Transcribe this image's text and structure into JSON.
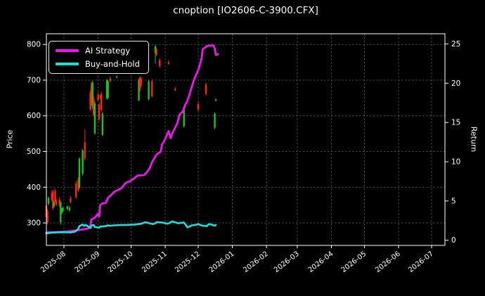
{
  "window": {
    "title": "cnoption [IO2606-C-3900.CFX]"
  },
  "colors": {
    "background": "#000000",
    "text": "#ffffff",
    "spine": "#ffffff",
    "grid": "#5c5c5c",
    "ai_strategy": "#ee15ee",
    "buy_and_hold": "#1cdede",
    "candle_up": "#1dc31d",
    "candle_down": "#fb2618"
  },
  "legend": {
    "items": [
      {
        "label": "AI Strategy",
        "color_key": "ai_strategy"
      },
      {
        "label": "Buy-and-Hold",
        "color_key": "buy_and_hold"
      }
    ]
  },
  "axes": {
    "left": {
      "label": "Price",
      "ticks": [
        300,
        400,
        500,
        600,
        700,
        800
      ],
      "range": [
        237,
        830
      ]
    },
    "right": {
      "label": "Return",
      "ticks": [
        0,
        5,
        10,
        15,
        20,
        25
      ],
      "range": [
        -0.65,
        26.3
      ]
    },
    "x": {
      "ticks": [
        "2025-08",
        "2025-09",
        "2025-10",
        "2025-11",
        "2025-12",
        "2026-01",
        "2026-02",
        "2026-03",
        "2026-04",
        "2026-05",
        "2026-06",
        "2026-07"
      ],
      "range": [
        "2025-07-16",
        "2026-07-13"
      ],
      "tick_rotation_deg": -38
    }
  },
  "chart_data": {
    "type": "candlestick_with_lines",
    "title": "cnoption [IO2606-C-3900.CFX]",
    "xlabel": "",
    "ylabel_left": "Price",
    "ylabel_right": "Return",
    "grid": true,
    "legend_position": "upper left",
    "candles_format": [
      "date",
      "open",
      "high",
      "low",
      "close"
    ],
    "candles": [
      [
        "2025-07-16",
        348,
        355,
        312,
        316
      ],
      [
        "2025-07-17",
        332,
        338,
        296,
        301
      ],
      [
        "2025-07-18",
        354,
        374,
        349,
        370
      ],
      [
        "2025-07-21",
        384,
        391,
        360,
        364
      ],
      [
        "2025-07-22",
        386,
        393,
        336,
        341
      ],
      [
        "2025-07-23",
        347,
        362,
        343,
        358
      ],
      [
        "2025-07-24",
        389,
        396,
        357,
        361
      ],
      [
        "2025-07-25",
        362,
        368,
        347,
        351
      ],
      [
        "2025-07-28",
        366,
        372,
        345,
        349
      ],
      [
        "2025-07-29",
        302,
        361,
        295,
        357
      ],
      [
        "2025-07-30",
        330,
        342,
        325,
        338
      ],
      [
        "2025-07-31",
        334,
        345,
        329,
        342
      ],
      [
        "2025-08-04",
        339,
        349,
        335,
        346
      ],
      [
        "2025-08-06",
        335,
        347,
        331,
        343
      ],
      [
        "2025-08-07",
        369,
        375,
        354,
        358
      ],
      [
        "2025-08-12",
        411,
        417,
        367,
        372
      ],
      [
        "2025-08-14",
        421,
        428,
        387,
        392
      ],
      [
        "2025-08-15",
        399,
        484,
        395,
        480
      ],
      [
        "2025-08-18",
        438,
        507,
        433,
        503
      ],
      [
        "2025-08-20",
        526,
        562,
        475,
        481
      ],
      [
        "2025-08-25",
        665,
        671,
        614,
        618
      ],
      [
        "2025-08-26",
        689,
        696,
        629,
        634
      ],
      [
        "2025-08-27",
        624,
        698,
        619,
        693
      ],
      [
        "2025-08-28",
        647,
        653,
        599,
        604
      ],
      [
        "2025-08-29",
        551,
        640,
        547,
        635
      ],
      [
        "2025-09-01",
        659,
        665,
        641,
        645
      ],
      [
        "2025-09-02",
        631,
        637,
        585,
        590
      ],
      [
        "2025-09-03",
        655,
        659,
        647,
        651
      ],
      [
        "2025-09-04",
        661,
        668,
        611,
        616
      ],
      [
        "2025-09-05",
        547,
        611,
        543,
        606
      ],
      [
        "2025-09-09",
        649,
        703,
        645,
        699
      ],
      [
        "2025-09-10",
        651,
        700,
        647,
        696
      ],
      [
        "2025-09-12",
        705,
        710,
        694,
        697
      ],
      [
        "2025-09-18",
        708,
        713,
        705,
        709
      ],
      [
        "2025-10-08",
        644,
        704,
        641,
        700
      ],
      [
        "2025-10-09",
        707,
        711,
        667,
        671
      ],
      [
        "2025-10-10",
        704,
        709,
        681,
        685
      ],
      [
        "2025-10-17",
        647,
        700,
        644,
        696
      ],
      [
        "2025-10-20",
        697,
        702,
        651,
        655
      ],
      [
        "2025-10-23",
        776,
        798,
        746,
        795
      ],
      [
        "2025-10-24",
        786,
        791,
        767,
        771
      ],
      [
        "2025-10-27",
        756,
        761,
        735,
        739
      ],
      [
        "2025-11-04",
        750,
        755,
        743,
        746
      ],
      [
        "2025-11-10",
        676,
        681,
        669,
        672
      ],
      [
        "2025-11-18",
        571,
        626,
        567,
        622
      ],
      [
        "2025-12-01",
        633,
        639,
        613,
        617
      ],
      [
        "2025-12-08",
        688,
        693,
        657,
        661
      ],
      [
        "2025-12-16",
        567,
        610,
        563,
        606
      ],
      [
        "2025-12-17",
        643,
        649,
        640,
        646
      ]
    ],
    "series": [
      {
        "name": "AI Strategy",
        "axis": "return",
        "color_key": "ai_strategy",
        "line_width": 2.8,
        "points": [
          [
            "2025-07-16",
            1.0
          ],
          [
            "2025-07-22",
            1.02
          ],
          [
            "2025-07-28",
            1.06
          ],
          [
            "2025-08-04",
            1.12
          ],
          [
            "2025-08-10",
            1.2
          ],
          [
            "2025-08-14",
            1.28
          ],
          [
            "2025-08-19",
            1.4
          ],
          [
            "2025-08-23",
            1.5
          ],
          [
            "2025-08-25",
            1.85
          ],
          [
            "2025-08-26",
            2.65
          ],
          [
            "2025-08-28",
            2.8
          ],
          [
            "2025-08-29",
            2.85
          ],
          [
            "2025-09-01",
            3.4
          ],
          [
            "2025-09-02",
            3.05
          ],
          [
            "2025-09-03",
            4.5
          ],
          [
            "2025-09-05",
            4.7
          ],
          [
            "2025-09-08",
            4.75
          ],
          [
            "2025-09-10",
            5.4
          ],
          [
            "2025-09-12",
            5.65
          ],
          [
            "2025-09-16",
            6.2
          ],
          [
            "2025-09-22",
            6.6
          ],
          [
            "2025-09-26",
            7.3
          ],
          [
            "2025-10-01",
            7.6
          ],
          [
            "2025-10-04",
            7.9
          ],
          [
            "2025-10-07",
            8.25
          ],
          [
            "2025-10-13",
            8.3
          ],
          [
            "2025-10-16",
            8.8
          ],
          [
            "2025-10-18",
            9.2
          ],
          [
            "2025-10-20",
            9.95
          ],
          [
            "2025-10-22",
            10.4
          ],
          [
            "2025-10-24",
            10.9
          ],
          [
            "2025-10-28",
            11.3
          ],
          [
            "2025-10-29",
            12.2
          ],
          [
            "2025-10-31",
            12.6
          ],
          [
            "2025-11-04",
            13.9
          ],
          [
            "2025-11-06",
            13.0
          ],
          [
            "2025-11-07",
            13.5
          ],
          [
            "2025-11-12",
            14.9
          ],
          [
            "2025-11-14",
            16.0
          ],
          [
            "2025-11-17",
            16.4
          ],
          [
            "2025-11-19",
            17.2
          ],
          [
            "2025-11-21",
            17.7
          ],
          [
            "2025-11-24",
            19.0
          ],
          [
            "2025-11-27",
            20.4
          ],
          [
            "2025-12-01",
            21.7
          ],
          [
            "2025-12-04",
            23.1
          ],
          [
            "2025-12-05",
            24.3
          ],
          [
            "2025-12-09",
            24.75
          ],
          [
            "2025-12-12",
            24.8
          ],
          [
            "2025-12-15",
            24.8
          ],
          [
            "2025-12-16",
            24.4
          ],
          [
            "2025-12-17",
            23.6
          ],
          [
            "2025-12-19",
            23.7
          ]
        ]
      },
      {
        "name": "Buy-and-Hold",
        "axis": "return",
        "color_key": "buy_and_hold",
        "line_width": 2.6,
        "points": [
          [
            "2025-07-16",
            0.88
          ],
          [
            "2025-07-20",
            0.95
          ],
          [
            "2025-07-25",
            1.0
          ],
          [
            "2025-07-31",
            1.02
          ],
          [
            "2025-08-07",
            1.0
          ],
          [
            "2025-08-11",
            1.1
          ],
          [
            "2025-08-14",
            1.45
          ],
          [
            "2025-08-15",
            1.8
          ],
          [
            "2025-08-18",
            2.0
          ],
          [
            "2025-08-19",
            1.85
          ],
          [
            "2025-08-21",
            1.95
          ],
          [
            "2025-08-25",
            1.55
          ],
          [
            "2025-08-26",
            1.9
          ],
          [
            "2025-08-28",
            1.95
          ],
          [
            "2025-08-29",
            1.7
          ],
          [
            "2025-09-02",
            1.6
          ],
          [
            "2025-09-03",
            1.75
          ],
          [
            "2025-09-05",
            1.75
          ],
          [
            "2025-09-08",
            1.8
          ],
          [
            "2025-09-10",
            1.9
          ],
          [
            "2025-09-12",
            1.85
          ],
          [
            "2025-09-16",
            1.9
          ],
          [
            "2025-09-22",
            1.95
          ],
          [
            "2025-09-26",
            1.95
          ],
          [
            "2025-10-04",
            2.0
          ],
          [
            "2025-10-10",
            2.1
          ],
          [
            "2025-10-14",
            2.3
          ],
          [
            "2025-10-17",
            2.2
          ],
          [
            "2025-10-21",
            2.05
          ],
          [
            "2025-10-23",
            2.15
          ],
          [
            "2025-10-24",
            2.3
          ],
          [
            "2025-10-30",
            2.25
          ],
          [
            "2025-11-03",
            2.1
          ],
          [
            "2025-11-05",
            2.2
          ],
          [
            "2025-11-07",
            2.4
          ],
          [
            "2025-11-10",
            2.3
          ],
          [
            "2025-11-13",
            2.15
          ],
          [
            "2025-11-14",
            2.2
          ],
          [
            "2025-11-18",
            2.25
          ],
          [
            "2025-11-20",
            1.9
          ],
          [
            "2025-11-21",
            1.65
          ],
          [
            "2025-11-24",
            1.8
          ],
          [
            "2025-11-25",
            1.9
          ],
          [
            "2025-11-28",
            1.95
          ],
          [
            "2025-12-01",
            2.05
          ],
          [
            "2025-12-03",
            1.95
          ],
          [
            "2025-12-05",
            1.85
          ],
          [
            "2025-12-09",
            1.8
          ],
          [
            "2025-12-10",
            2.0
          ],
          [
            "2025-12-12",
            2.05
          ],
          [
            "2025-12-15",
            1.9
          ],
          [
            "2025-12-16",
            1.85
          ],
          [
            "2025-12-17",
            1.95
          ]
        ]
      }
    ]
  }
}
